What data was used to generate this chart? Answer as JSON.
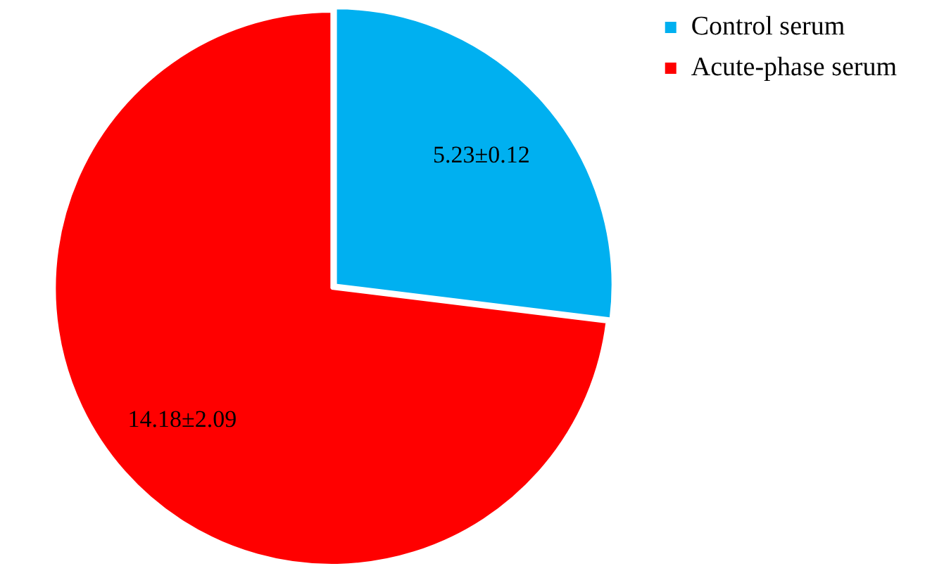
{
  "chart_data": {
    "type": "pie",
    "categories": [
      "Control serum",
      "Acute-phase serum"
    ],
    "values": [
      5.23,
      14.18
    ],
    "value_labels": [
      "5.23±0.12",
      "14.18±2.09"
    ],
    "colors": [
      "#00b0f0",
      "#ff0000"
    ],
    "legend": "top right"
  }
}
